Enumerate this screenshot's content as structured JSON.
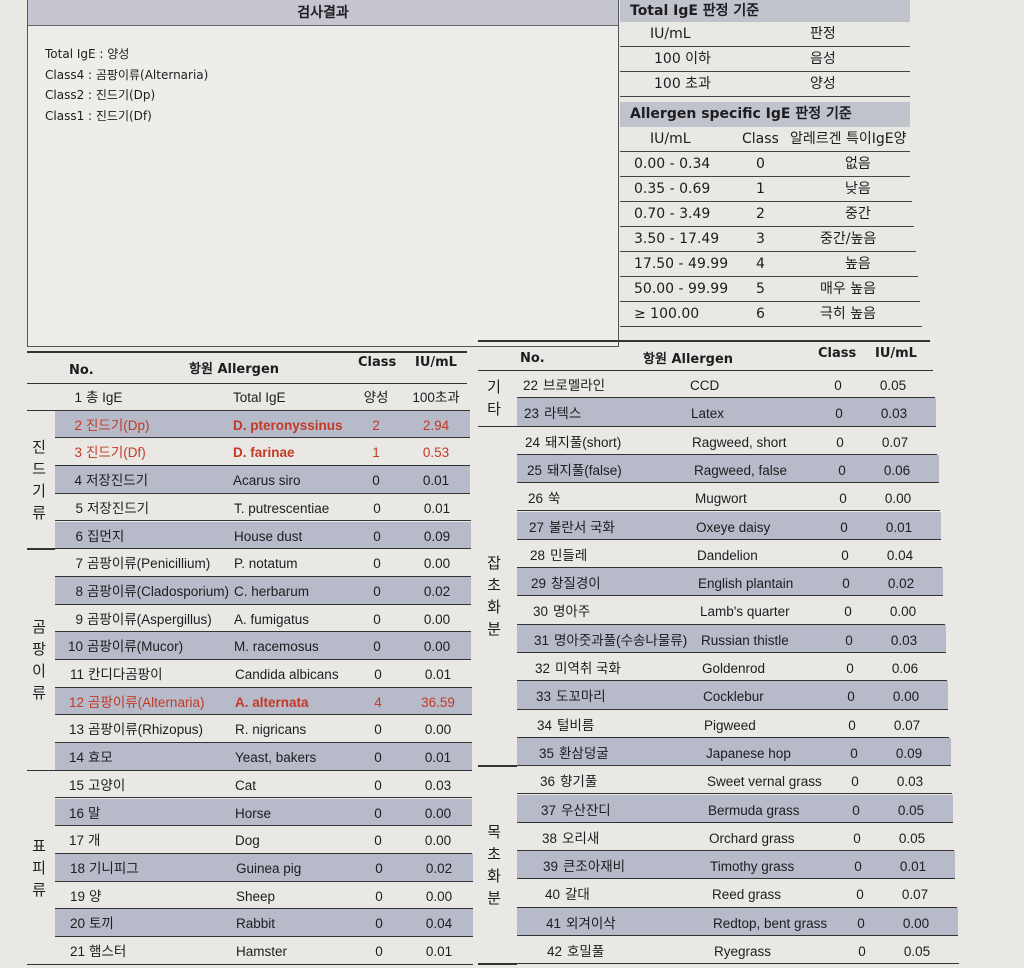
{
  "results": {
    "title": "검사결과",
    "lines": [
      "Total IgE : 양성",
      "Class4 : 곰팡이류(Alternaria)",
      "Class2 : 진드기(Dp)",
      "Class1 : 진드기(Df)"
    ]
  },
  "total_criteria": {
    "title": "Total IgE 판정 기준",
    "headers": [
      "IU/mL",
      "판정"
    ],
    "rows": [
      [
        "100 이하",
        "음성"
      ],
      [
        "100 초과",
        "양성"
      ]
    ]
  },
  "specific_criteria": {
    "title": "Allergen specific IgE 판정 기준",
    "headers": [
      "IU/mL",
      "Class",
      "알레르겐 특이IgE양"
    ],
    "rows": [
      [
        "0.00 - 0.34",
        "0",
        "없음"
      ],
      [
        "0.35 - 0.69",
        "1",
        "낮음"
      ],
      [
        "0.70 - 3.49",
        "2",
        "중간"
      ],
      [
        "3.50 - 17.49",
        "3",
        "중간/높음"
      ],
      [
        "17.50 - 49.99",
        "4",
        "높음"
      ],
      [
        "50.00 - 99.99",
        "5",
        "매우 높음"
      ],
      [
        "≥ 100.00",
        "6",
        "극히 높음"
      ]
    ]
  },
  "table_headers": {
    "no": "No.",
    "allergen": "항원 Allergen",
    "class": "Class",
    "value": "IU/mL"
  },
  "colors": {
    "highlight": "#c23a26",
    "shade": "#b7bac9"
  },
  "left_table": {
    "groups": [
      {
        "label": "진드기류",
        "from": 2,
        "to": 6
      },
      {
        "label": "곰팡이류",
        "from": 7,
        "to": 14
      },
      {
        "label": "표피류",
        "from": 15,
        "to": 21
      }
    ],
    "rows": [
      {
        "no": "1",
        "name": "총 IgE",
        "latin": "Total IgE",
        "class": "양성",
        "value": "100초과"
      },
      {
        "no": "2",
        "name": "진드기(Dp)",
        "latin": "D. pteronyssinus",
        "class": "2",
        "value": "2.94",
        "highlight": true
      },
      {
        "no": "3",
        "name": "진드기(Df)",
        "latin": "D. farinae",
        "class": "1",
        "value": "0.53",
        "highlight": true
      },
      {
        "no": "4",
        "name": "저장진드기",
        "latin": "Acarus siro",
        "class": "0",
        "value": "0.01"
      },
      {
        "no": "5",
        "name": "저장진드기",
        "latin": "T. putrescentiae",
        "class": "0",
        "value": "0.01"
      },
      {
        "no": "6",
        "name": "집먼지",
        "latin": "House dust",
        "class": "0",
        "value": "0.09"
      },
      {
        "no": "7",
        "name": "곰팡이류(Penicillium)",
        "latin": "P. notatum",
        "class": "0",
        "value": "0.00"
      },
      {
        "no": "8",
        "name": "곰팡이류(Cladosporium)",
        "latin": "C. herbarum",
        "class": "0",
        "value": "0.02"
      },
      {
        "no": "9",
        "name": "곰팡이류(Aspergillus)",
        "latin": "A. fumigatus",
        "class": "0",
        "value": "0.00"
      },
      {
        "no": "10",
        "name": "곰팡이류(Mucor)",
        "latin": "M. racemosus",
        "class": "0",
        "value": "0.00"
      },
      {
        "no": "11",
        "name": "칸디다곰팡이",
        "latin": "Candida albicans",
        "class": "0",
        "value": "0.01"
      },
      {
        "no": "12",
        "name": "곰팡이류(Alternaria)",
        "latin": "A. alternata",
        "class": "4",
        "value": "36.59",
        "highlight": true
      },
      {
        "no": "13",
        "name": "곰팡이류(Rhizopus)",
        "latin": "R. nigricans",
        "class": "0",
        "value": "0.00"
      },
      {
        "no": "14",
        "name": "효모",
        "latin": "Yeast, bakers",
        "class": "0",
        "value": "0.01"
      },
      {
        "no": "15",
        "name": "고양이",
        "latin": "Cat",
        "class": "0",
        "value": "0.03"
      },
      {
        "no": "16",
        "name": "말",
        "latin": "Horse",
        "class": "0",
        "value": "0.00"
      },
      {
        "no": "17",
        "name": "개",
        "latin": "Dog",
        "class": "0",
        "value": "0.00"
      },
      {
        "no": "18",
        "name": "기니피그",
        "latin": "Guinea pig",
        "class": "0",
        "value": "0.02"
      },
      {
        "no": "19",
        "name": "양",
        "latin": "Sheep",
        "class": "0",
        "value": "0.00"
      },
      {
        "no": "20",
        "name": "토끼",
        "latin": "Rabbit",
        "class": "0",
        "value": "0.04"
      },
      {
        "no": "21",
        "name": "햄스터",
        "latin": "Hamster",
        "class": "0",
        "value": "0.01"
      }
    ]
  },
  "right_table": {
    "groups": [
      {
        "label": "기타",
        "from": 22,
        "to": 23
      },
      {
        "label": "잡초화분",
        "from": 24,
        "to": 35
      },
      {
        "label": "목초화분",
        "from": 36,
        "to": 42
      }
    ],
    "rows": [
      {
        "no": "22",
        "name": "브로멜라인",
        "latin": "CCD",
        "class": "0",
        "value": "0.05"
      },
      {
        "no": "23",
        "name": "라텍스",
        "latin": "Latex",
        "class": "0",
        "value": "0.03"
      },
      {
        "no": "24",
        "name": "돼지풀(short)",
        "latin": "Ragweed, short",
        "class": "0",
        "value": "0.07"
      },
      {
        "no": "25",
        "name": "돼지풀(false)",
        "latin": "Ragweed, false",
        "class": "0",
        "value": "0.06"
      },
      {
        "no": "26",
        "name": "쑥",
        "latin": "Mugwort",
        "class": "0",
        "value": "0.00"
      },
      {
        "no": "27",
        "name": "불란서 국화",
        "latin": "Oxeye daisy",
        "class": "0",
        "value": "0.01"
      },
      {
        "no": "28",
        "name": "민들레",
        "latin": "Dandelion",
        "class": "0",
        "value": "0.04"
      },
      {
        "no": "29",
        "name": "창질경이",
        "latin": "English plantain",
        "class": "0",
        "value": "0.02"
      },
      {
        "no": "30",
        "name": "명아주",
        "latin": "Lamb's quarter",
        "class": "0",
        "value": "0.00"
      },
      {
        "no": "31",
        "name": "명아줏과풀(수송나물류)",
        "latin": "Russian thistle",
        "class": "0",
        "value": "0.03"
      },
      {
        "no": "32",
        "name": "미역취 국화",
        "latin": "Goldenrod",
        "class": "0",
        "value": "0.06"
      },
      {
        "no": "33",
        "name": "도꼬마리",
        "latin": "Cocklebur",
        "class": "0",
        "value": "0.00"
      },
      {
        "no": "34",
        "name": "털비름",
        "latin": "Pigweed",
        "class": "0",
        "value": "0.07"
      },
      {
        "no": "35",
        "name": "환삼덩굴",
        "latin": "Japanese hop",
        "class": "0",
        "value": "0.09"
      },
      {
        "no": "36",
        "name": "향기풀",
        "latin": "Sweet vernal grass",
        "class": "0",
        "value": "0.03"
      },
      {
        "no": "37",
        "name": "우산잔디",
        "latin": "Bermuda grass",
        "class": "0",
        "value": "0.05"
      },
      {
        "no": "38",
        "name": "오리새",
        "latin": "Orchard grass",
        "class": "0",
        "value": "0.05"
      },
      {
        "no": "39",
        "name": "큰조아재비",
        "latin": "Timothy grass",
        "class": "0",
        "value": "0.01"
      },
      {
        "no": "40",
        "name": "갈대",
        "latin": "Reed grass",
        "class": "0",
        "value": "0.07"
      },
      {
        "no": "41",
        "name": "외겨이삭",
        "latin": "Redtop, bent grass",
        "class": "0",
        "value": "0.00"
      },
      {
        "no": "42",
        "name": "호밀풀",
        "latin": "Ryegrass",
        "class": "0",
        "value": "0.05"
      }
    ]
  }
}
